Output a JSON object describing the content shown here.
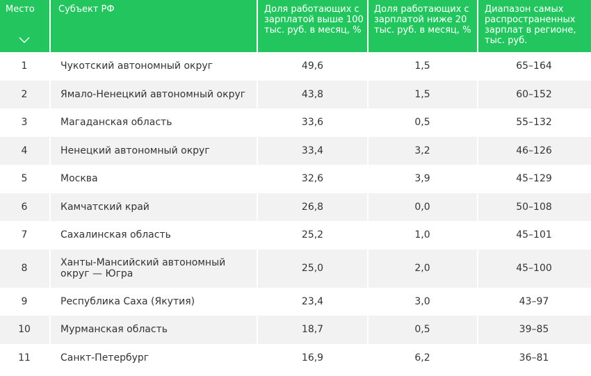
{
  "columns": {
    "rank": "Место",
    "region": "Субъект РФ",
    "share_over_100": "Доля работающих с зарплатой выше 100 тыс. руб. в месяц, %",
    "share_under_20": "Доля работающих с зарплатой ниже 20 тыс. руб. в месяц, %",
    "salary_range": "Диапазон самых распространенных зарплат в регионе, тыс. руб."
  },
  "sort_icon": "chevron-down-icon",
  "colors": {
    "header_bg": "#22c55e",
    "alt_row_bg": "#f2f2f2"
  },
  "rows": [
    {
      "rank": "1",
      "region": "Чукотский автономный округ",
      "share_over_100": "49,6",
      "share_under_20": "1,5",
      "salary_range": "65–164"
    },
    {
      "rank": "2",
      "region": "Ямало-Ненецкий автономный округ",
      "share_over_100": "43,8",
      "share_under_20": "1,5",
      "salary_range": "60–152"
    },
    {
      "rank": "3",
      "region": "Магаданская область",
      "share_over_100": "33,6",
      "share_under_20": "0,5",
      "salary_range": "55–132"
    },
    {
      "rank": "4",
      "region": "Ненецкий автономный округ",
      "share_over_100": "33,4",
      "share_under_20": "3,2",
      "salary_range": "46–126"
    },
    {
      "rank": "5",
      "region": "Москва",
      "share_over_100": "32,6",
      "share_under_20": "3,9",
      "salary_range": "45–129"
    },
    {
      "rank": "6",
      "region": "Камчатский край",
      "share_over_100": "26,8",
      "share_under_20": "0,0",
      "salary_range": "50–108"
    },
    {
      "rank": "7",
      "region": "Сахалинская область",
      "share_over_100": "25,2",
      "share_under_20": "1,0",
      "salary_range": "45–101"
    },
    {
      "rank": "8",
      "region": "Ханты-Мансийский автономный округ — Югра",
      "share_over_100": "25,0",
      "share_under_20": "2,0",
      "salary_range": "45–100"
    },
    {
      "rank": "9",
      "region": "Республика Саха (Якутия)",
      "share_over_100": "23,4",
      "share_under_20": "3,0",
      "salary_range": "43–97"
    },
    {
      "rank": "10",
      "region": "Мурманская область",
      "share_over_100": "18,7",
      "share_under_20": "0,5",
      "salary_range": "39–85"
    },
    {
      "rank": "11",
      "region": "Санкт-Петербург",
      "share_over_100": "16,9",
      "share_under_20": "6,2",
      "salary_range": "36–81"
    }
  ]
}
